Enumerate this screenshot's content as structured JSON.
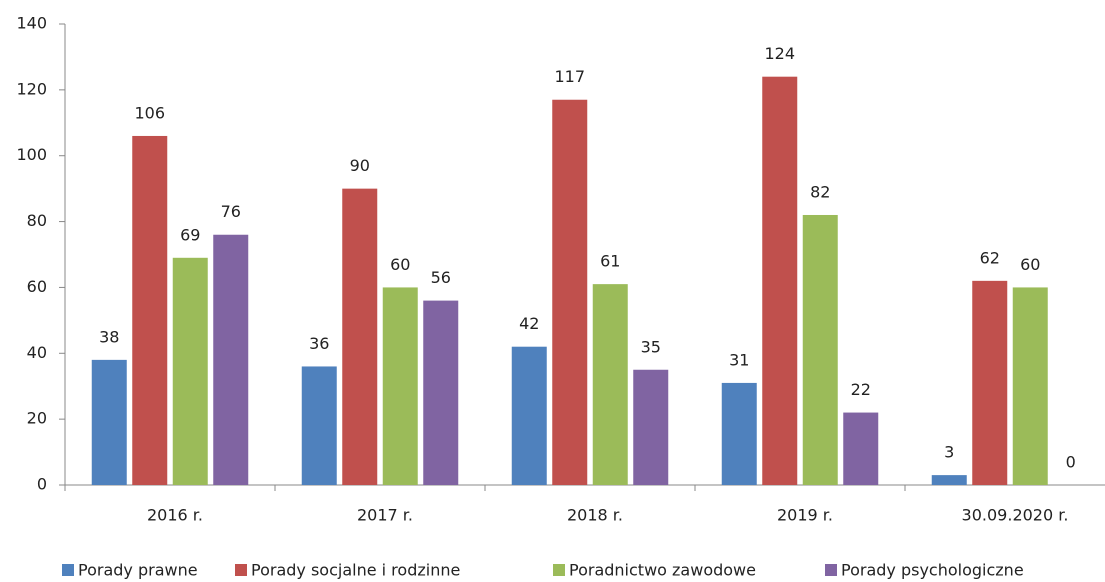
{
  "chart_data": {
    "type": "bar",
    "categories": [
      "2016 r.",
      "2017 r.",
      "2018 r.",
      "2019 r.",
      "30.09.2020 r."
    ],
    "series": [
      {
        "name": "Porady prawne",
        "color": "#4f81bd",
        "values": [
          38,
          36,
          42,
          31,
          3
        ]
      },
      {
        "name": "Porady socjalne i rodzinne",
        "color": "#c0504d",
        "values": [
          106,
          90,
          117,
          124,
          62
        ]
      },
      {
        "name": "Poradnictwo zawodowe",
        "color": "#9bbb59",
        "values": [
          69,
          60,
          61,
          82,
          60
        ]
      },
      {
        "name": "Porady psychologiczne",
        "color": "#8064a2",
        "values": [
          76,
          56,
          35,
          22,
          0
        ]
      }
    ],
    "ylim": [
      0,
      140
    ],
    "yticks": [
      0,
      20,
      40,
      60,
      80,
      100,
      120,
      140
    ],
    "grid": false,
    "legend": "bottom"
  }
}
